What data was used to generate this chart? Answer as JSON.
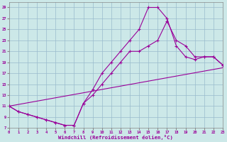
{
  "xlabel": "Windchill (Refroidissement éolien,°C)",
  "bg_color": "#cce8e8",
  "line_color": "#990099",
  "grid_color": "#99bbcc",
  "ylim": [
    7,
    30
  ],
  "xlim": [
    0,
    23
  ],
  "yticks": [
    7,
    9,
    11,
    13,
    15,
    17,
    19,
    21,
    23,
    25,
    27,
    29
  ],
  "xticks": [
    0,
    1,
    2,
    3,
    4,
    5,
    6,
    7,
    8,
    9,
    10,
    11,
    12,
    13,
    14,
    15,
    16,
    17,
    18,
    19,
    20,
    21,
    22,
    23
  ],
  "curve1_x": [
    0,
    1,
    2,
    3,
    4,
    5,
    6,
    7,
    8,
    9,
    10,
    11,
    12,
    13,
    14,
    15,
    16,
    17,
    18,
    19,
    20,
    21,
    22,
    23
  ],
  "curve1_y": [
    11,
    10,
    9.5,
    9,
    8.5,
    8,
    7.5,
    7.5,
    11.5,
    14,
    17,
    19,
    21,
    23,
    25,
    29,
    29,
    27,
    22,
    20,
    19.5,
    20,
    20,
    18.5
  ],
  "curve2_x": [
    0,
    1,
    2,
    3,
    4,
    5,
    6,
    7,
    8,
    9,
    10,
    11,
    12,
    13,
    14,
    15,
    16,
    17,
    18,
    19,
    20,
    21,
    22,
    23
  ],
  "curve2_y": [
    11,
    10,
    9.5,
    9,
    8.5,
    8,
    7.5,
    7.5,
    11.5,
    13,
    15,
    17,
    19,
    21,
    21,
    22,
    23,
    26.5,
    23,
    22,
    20,
    20,
    20,
    18.5
  ],
  "curve3_x": [
    0,
    23
  ],
  "curve3_y": [
    11,
    18
  ]
}
